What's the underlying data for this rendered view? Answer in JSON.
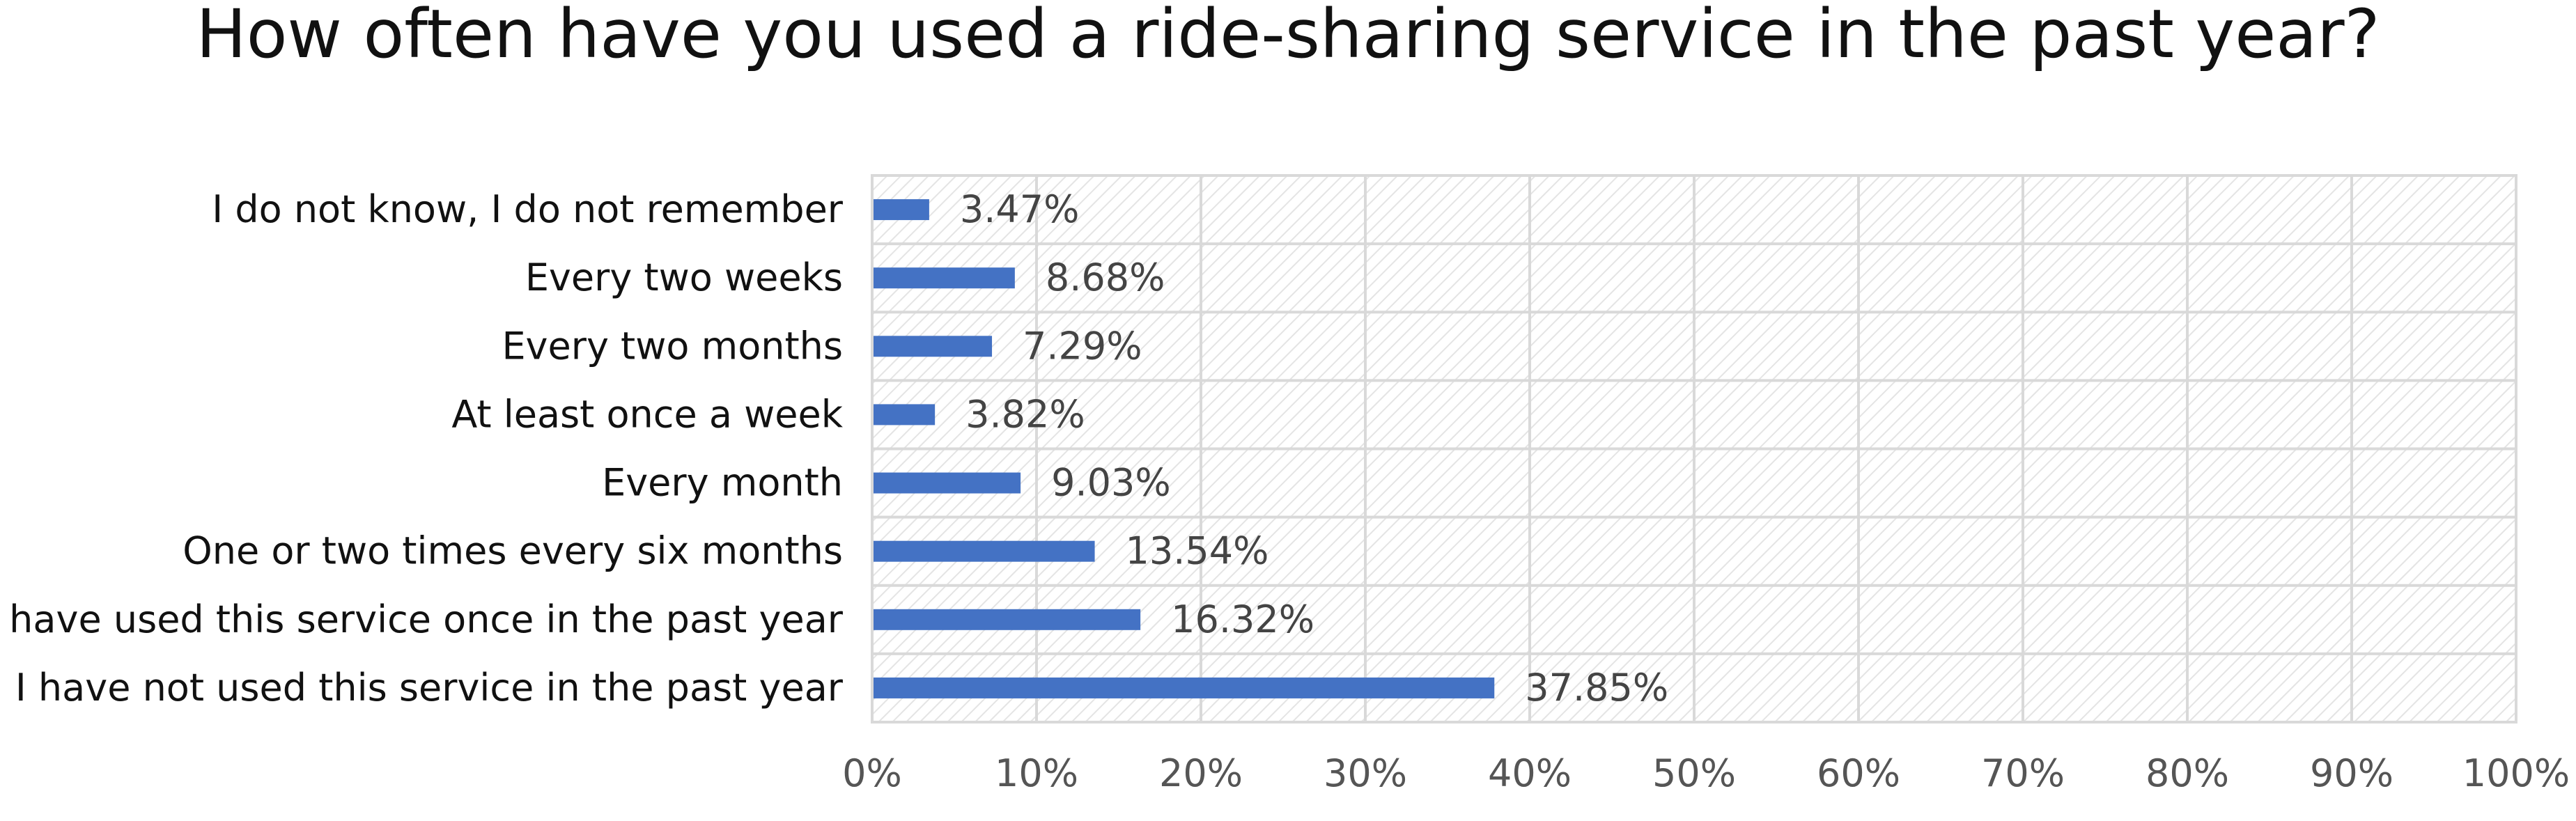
{
  "chart_data": {
    "type": "bar",
    "orientation": "horizontal",
    "title": "How often have you used a ride-sharing service in the past year?",
    "xlabel": "",
    "ylabel": "",
    "categories": [
      "I do not know, I do not remember",
      "Every two weeks",
      "Every two months",
      "At least once a week",
      "Every month",
      "One or two times every six months",
      "I have used this service once in the past year",
      "I have not used this service in the past year"
    ],
    "values": [
      3.47,
      8.68,
      7.29,
      3.82,
      9.03,
      13.54,
      16.32,
      37.85
    ],
    "data_labels": [
      "3.47%",
      "8.68%",
      "7.29%",
      "3.82%",
      "9.03%",
      "13.54%",
      "16.32%",
      "37.85%"
    ],
    "xlim": [
      0,
      100
    ],
    "xticks": [
      0,
      10,
      20,
      30,
      40,
      50,
      60,
      70,
      80,
      90,
      100
    ],
    "xtick_labels": [
      "0%",
      "10%",
      "20%",
      "30%",
      "40%",
      "50%",
      "60%",
      "70%",
      "80%",
      "90%",
      "100%"
    ],
    "grid": true,
    "legend": "none",
    "colors": {
      "bar": "#4472c4",
      "grid": "#d9d9d9",
      "hatch": "#e6e6e6"
    }
  }
}
